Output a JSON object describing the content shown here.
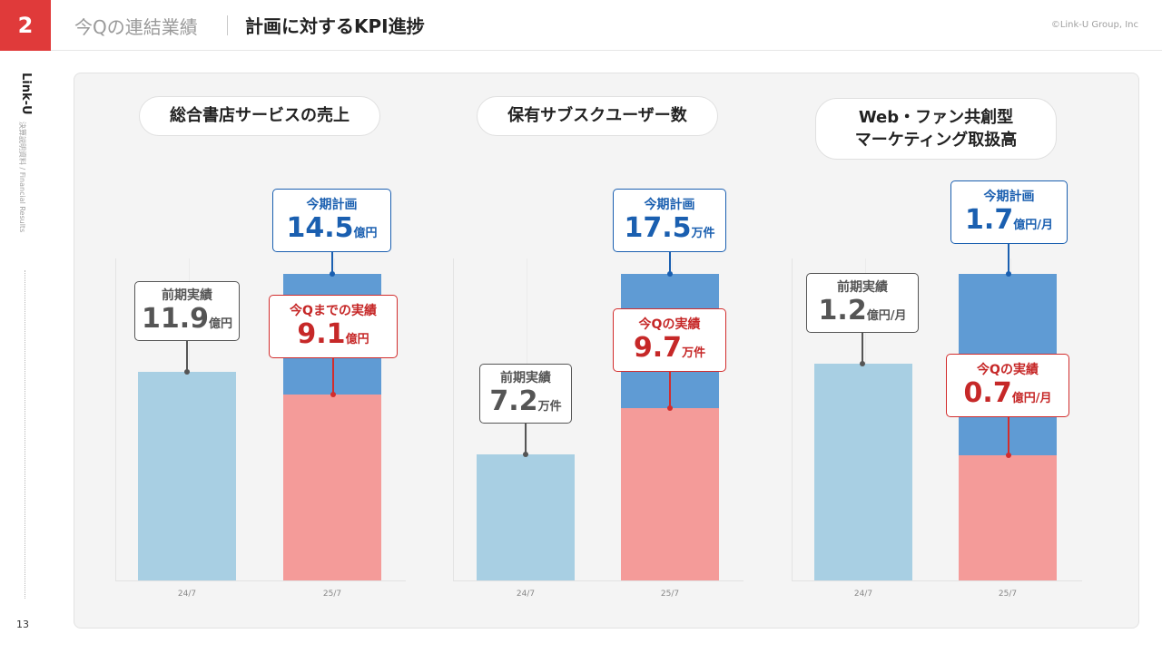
{
  "header": {
    "section_number": "2",
    "subtitle": "今Qの連結業績",
    "title": "計画に対するKPI進捗",
    "copyright": "©Link-U Group, Inc"
  },
  "rail": {
    "brand": "Link-U",
    "doc_label": "決算説明資料 / Financial Results",
    "page_number": "13"
  },
  "colors": {
    "brand_red": "#e03a3a",
    "plan_bar": "#5f9bd4",
    "actual_bar": "#f49b99",
    "prev_bar": "#a8cfe3",
    "plan_text": "#1a5fb0",
    "actual_text": "#c62828"
  },
  "charts": [
    {
      "title": "総合書店サービスの売上",
      "prev_label": "前期実績",
      "prev_value": "11.9",
      "prev_unit": "億円",
      "plan_label": "今期計画",
      "plan_value": "14.5",
      "plan_unit": "億円",
      "actual_label": "今Qまでの実績",
      "actual_value": "9.1",
      "actual_unit": "億円",
      "x_prev": "24/7",
      "x_curr": "25/7"
    },
    {
      "title": "保有サブスクユーザー数",
      "prev_label": "前期実績",
      "prev_value": "7.2",
      "prev_unit": "万件",
      "plan_label": "今期計画",
      "plan_value": "17.5",
      "plan_unit": "万件",
      "actual_label": "今Qの実績",
      "actual_value": "9.7",
      "actual_unit": "万件",
      "x_prev": "24/7",
      "x_curr": "25/7"
    },
    {
      "title_line1": "Web・ファン共創型",
      "title_line2": "マーケティング取扱高",
      "prev_label": "前期実績",
      "prev_value": "1.2",
      "prev_unit": "億円/月",
      "plan_label": "今期計画",
      "plan_value": "1.7",
      "plan_unit": "億円/月",
      "actual_label": "今Qの実績",
      "actual_value": "0.7",
      "actual_unit": "億円/月",
      "x_prev": "24/7",
      "x_curr": "25/7"
    }
  ],
  "chart_data": [
    {
      "type": "bar",
      "title": "総合書店サービスの売上",
      "categories": [
        "24/7",
        "25/7"
      ],
      "series": [
        {
          "name": "前期実績",
          "values": [
            11.9,
            null
          ]
        },
        {
          "name": "今期計画",
          "values": [
            null,
            14.5
          ]
        },
        {
          "name": "今Qまでの実績",
          "values": [
            null,
            9.1
          ]
        }
      ],
      "unit": "億円"
    },
    {
      "type": "bar",
      "title": "保有サブスクユーザー数",
      "categories": [
        "24/7",
        "25/7"
      ],
      "series": [
        {
          "name": "前期実績",
          "values": [
            7.2,
            null
          ]
        },
        {
          "name": "今期計画",
          "values": [
            null,
            17.5
          ]
        },
        {
          "name": "今Qの実績",
          "values": [
            null,
            9.7
          ]
        }
      ],
      "unit": "万件"
    },
    {
      "type": "bar",
      "title": "Web・ファン共創型マーケティング取扱高",
      "categories": [
        "24/7",
        "25/7"
      ],
      "series": [
        {
          "name": "前期実績",
          "values": [
            1.2,
            null
          ]
        },
        {
          "name": "今期計画",
          "values": [
            null,
            1.7
          ]
        },
        {
          "name": "今Qの実績",
          "values": [
            null,
            0.7
          ]
        }
      ],
      "unit": "億円/月"
    }
  ]
}
